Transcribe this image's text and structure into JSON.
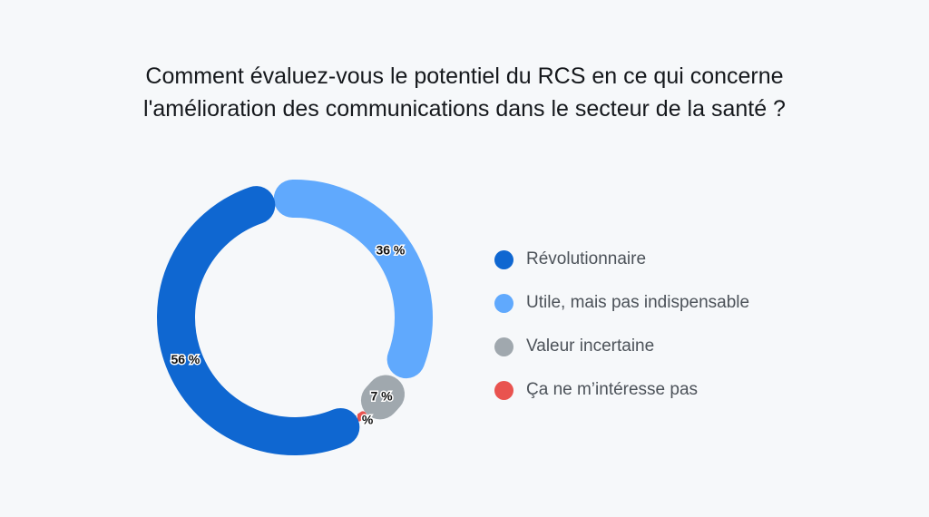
{
  "chart_data": {
    "type": "pie",
    "subtype": "donut",
    "title": "Comment évaluez-vous le potentiel du RCS en ce qui concerne l'amélioration des communications dans le secteur de la santé ?",
    "title_lines": [
      "Comment évaluez-vous le potentiel du RCS en ce qui concerne",
      "l'amélioration des communications dans le secteur de la santé ?"
    ],
    "categories": [
      "Révolutionnaire",
      "Utile, mais pas indispensable",
      "Valeur incertaine",
      "Ça ne m’intéresse pas"
    ],
    "values": [
      56,
      36,
      7,
      1
    ],
    "data_labels": [
      "56 %",
      "36 %",
      "7 %",
      "1 %"
    ],
    "colors": [
      "#0f67d1",
      "#60a9fd",
      "#a0a8ae",
      "#e9534f"
    ],
    "legend_position": "right"
  }
}
